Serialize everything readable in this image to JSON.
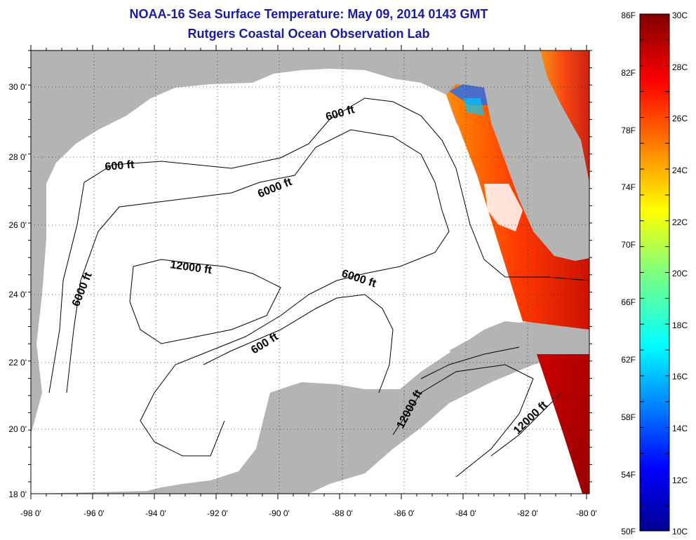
{
  "header": {
    "title": "NOAA-16 Sea Surface Temperature:  May 09, 2014 0143 GMT",
    "subtitle": "Rutgers Coastal Ocean Observation Lab"
  },
  "map": {
    "lon_labels": [
      "-98 0'",
      "-96 0'",
      "-94 0'",
      "-92 0'",
      "-90 0'",
      "-88 0'",
      "-86 0'",
      "-84 0'",
      "-82 0'",
      "-80 0'"
    ],
    "lat_labels": [
      "30 0'",
      "28 0'",
      "26 0'",
      "24 0'",
      "22 0'",
      "20 0'",
      "18 0'"
    ],
    "contour_labels": [
      "600 ft",
      "600 ft",
      "6000 ft",
      "12000 ft",
      "6000 ft",
      "6000 ft",
      "600 ft",
      "12000 ft",
      "12000 ft"
    ],
    "colors": {
      "land": "#b4b4b4",
      "ocean": "#ffffff",
      "title": "#1a1aa6"
    }
  },
  "colorbar": {
    "fahrenheit_labels": [
      "86F",
      "82F",
      "78F",
      "74F",
      "70F",
      "66F",
      "62F",
      "58F",
      "54F",
      "50F"
    ],
    "celsius_labels": [
      "30C",
      "28C",
      "26C",
      "24C",
      "22C",
      "20C",
      "18C",
      "16C",
      "14C",
      "12C",
      "10C"
    ],
    "range_c": [
      10,
      30
    ],
    "colormap": "jet"
  }
}
